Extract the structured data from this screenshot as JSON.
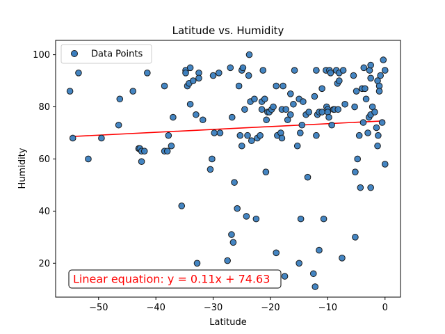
{
  "chart_data": {
    "type": "scatter",
    "title": "Latitude vs. Humidity",
    "xlabel": "Latitude",
    "ylabel": "Humidity",
    "xlim": [
      -57.5,
      2.7
    ],
    "ylim": [
      7,
      105.5
    ],
    "xticks": [
      -50,
      -40,
      -30,
      -20,
      -10,
      0
    ],
    "yticks": [
      20,
      40,
      60,
      80,
      100
    ],
    "grid": false,
    "legend": {
      "position": "top-left",
      "entries": [
        "Data Points"
      ]
    },
    "colors": {
      "marker_fill": "#3a7ebf",
      "marker_edge": "#1a1a1a",
      "regression": "#ff0000"
    },
    "series": [
      {
        "name": "Data Points",
        "points": [
          [
            -55,
            86
          ],
          [
            -54.5,
            68
          ],
          [
            -53.5,
            93
          ],
          [
            -51.8,
            60
          ],
          [
            -49.5,
            68
          ],
          [
            -46.5,
            73
          ],
          [
            -46.3,
            83
          ],
          [
            -44,
            86
          ],
          [
            -43,
            64
          ],
          [
            -42.8,
            64
          ],
          [
            -42.5,
            59
          ],
          [
            -42.5,
            63
          ],
          [
            -42,
            63
          ],
          [
            -41.5,
            93
          ],
          [
            -38.5,
            88
          ],
          [
            -38.5,
            63
          ],
          [
            -38,
            63
          ],
          [
            -37.8,
            69
          ],
          [
            -37.3,
            65
          ],
          [
            -37,
            76
          ],
          [
            -35.5,
            42
          ],
          [
            -34.8,
            94
          ],
          [
            -34.8,
            93
          ],
          [
            -34.5,
            88
          ],
          [
            -34.2,
            89
          ],
          [
            -34,
            95
          ],
          [
            -34,
            81
          ],
          [
            -33.5,
            90
          ],
          [
            -33,
            77
          ],
          [
            -32.8,
            20
          ],
          [
            -32.5,
            93
          ],
          [
            -32.5,
            91
          ],
          [
            -31.8,
            75
          ],
          [
            -30.5,
            56
          ],
          [
            -30.2,
            60
          ],
          [
            -30,
            92
          ],
          [
            -29.8,
            70
          ],
          [
            -29,
            93
          ],
          [
            -28.8,
            70
          ],
          [
            -27.5,
            21
          ],
          [
            -27,
            95
          ],
          [
            -26.8,
            31
          ],
          [
            -26.7,
            76
          ],
          [
            -26.5,
            28
          ],
          [
            -26.3,
            51
          ],
          [
            -25.8,
            41
          ],
          [
            -25.5,
            88
          ],
          [
            -25.3,
            69
          ],
          [
            -25,
            65
          ],
          [
            -25,
            94
          ],
          [
            -24.8,
            95
          ],
          [
            -24.5,
            79
          ],
          [
            -24.2,
            38
          ],
          [
            -24,
            69
          ],
          [
            -23.8,
            92
          ],
          [
            -23.7,
            100
          ],
          [
            -23.5,
            82
          ],
          [
            -23.3,
            67
          ],
          [
            -22.8,
            83
          ],
          [
            -22.5,
            37
          ],
          [
            -22.3,
            68
          ],
          [
            -21.8,
            69
          ],
          [
            -21.5,
            82
          ],
          [
            -21.5,
            79
          ],
          [
            -21.3,
            94
          ],
          [
            -21,
            83
          ],
          [
            -20.8,
            55
          ],
          [
            -20.7,
            75
          ],
          [
            -20.5,
            78
          ],
          [
            -20.2,
            78
          ],
          [
            -19.8,
            79
          ],
          [
            -19.5,
            80
          ],
          [
            -19,
            24
          ],
          [
            -19,
            88
          ],
          [
            -18.8,
            69
          ],
          [
            -18.2,
            70
          ],
          [
            -18,
            68
          ],
          [
            -18,
            79
          ],
          [
            -17.8,
            88
          ],
          [
            -17.5,
            15
          ],
          [
            -17.3,
            79
          ],
          [
            -17,
            75
          ],
          [
            -16.5,
            77
          ],
          [
            -16.5,
            85
          ],
          [
            -16,
            81
          ],
          [
            -15.8,
            94
          ],
          [
            -15.3,
            65
          ],
          [
            -15,
            83
          ],
          [
            -15,
            20
          ],
          [
            -14.8,
            70
          ],
          [
            -14.7,
            37
          ],
          [
            -14.5,
            73
          ],
          [
            -14.3,
            82
          ],
          [
            -13.8,
            77
          ],
          [
            -13.5,
            53
          ],
          [
            -13.3,
            78
          ],
          [
            -12.5,
            16
          ],
          [
            -12.3,
            84
          ],
          [
            -12.2,
            11
          ],
          [
            -12,
            69
          ],
          [
            -12,
            94
          ],
          [
            -11.8,
            77
          ],
          [
            -11.5,
            25
          ],
          [
            -11.5,
            78
          ],
          [
            -11,
            87
          ],
          [
            -11,
            78
          ],
          [
            -10.7,
            37
          ],
          [
            -10.3,
            94
          ],
          [
            -10.2,
            80
          ],
          [
            -10,
            79
          ],
          [
            -10,
            78
          ],
          [
            -9.8,
            76
          ],
          [
            -9.7,
            94
          ],
          [
            -9.5,
            93
          ],
          [
            -9.3,
            73
          ],
          [
            -9,
            79
          ],
          [
            -8.8,
            79
          ],
          [
            -8.5,
            94
          ],
          [
            -8.3,
            89
          ],
          [
            -8.2,
            79
          ],
          [
            -8,
            90
          ],
          [
            -8,
            93
          ],
          [
            -7.5,
            22
          ],
          [
            -7.3,
            94
          ],
          [
            -7,
            81
          ],
          [
            -5.5,
            92
          ],
          [
            -5.3,
            80
          ],
          [
            -5.2,
            30
          ],
          [
            -5.2,
            55
          ],
          [
            -5,
            86
          ],
          [
            -4.8,
            60
          ],
          [
            -4.5,
            69
          ],
          [
            -4.3,
            49
          ],
          [
            -4,
            87
          ],
          [
            -3.8,
            74
          ],
          [
            -3.7,
            95
          ],
          [
            -3.5,
            87
          ],
          [
            -3.3,
            83
          ],
          [
            -3,
            70
          ],
          [
            -2.8,
            76
          ],
          [
            -2.7,
            94
          ],
          [
            -2.5,
            96
          ],
          [
            -2.5,
            91
          ],
          [
            -2.5,
            77
          ],
          [
            -2.5,
            49
          ],
          [
            -2.2,
            80
          ],
          [
            -1.8,
            78
          ],
          [
            -1.5,
            72
          ],
          [
            -1.3,
            90
          ],
          [
            -1.3,
            65
          ],
          [
            -1.2,
            69
          ],
          [
            -1,
            88
          ],
          [
            -1,
            86
          ],
          [
            -0.8,
            92
          ],
          [
            -0.5,
            74
          ],
          [
            -0.3,
            98
          ],
          [
            0,
            94
          ],
          [
            0,
            58
          ]
        ]
      }
    ],
    "regression": {
      "slope": 0.11,
      "intercept": 74.63,
      "x_range": [
        -55,
        0
      ],
      "label": "Linear equation: y = 0.11x + 74.63"
    }
  }
}
